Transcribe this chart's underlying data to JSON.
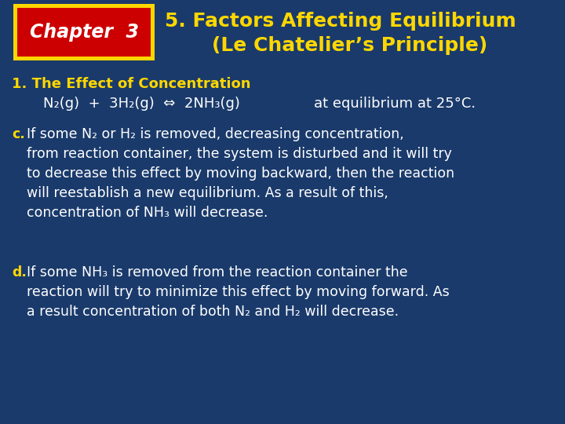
{
  "bg_color": "#1a3a6b",
  "title_line1": "5. Factors Affecting Equilibrium",
  "title_line2": "(Le Chatelier’s Principle)",
  "title_color": "#ffd700",
  "chapter_label": "Chapter  3",
  "chapter_bg": "#cc0000",
  "chapter_border": "#ffd700",
  "chapter_text_color": "#ffffff",
  "section_title": "1. The Effect of Concentration",
  "section_title_color": "#ffd700",
  "equation_color": "#ffffff",
  "eq_label_color": "#ffd700",
  "body_color": "#ffffff",
  "para_c_label": "c.",
  "para_c_text": "If some N₂ or H₂ is removed, decreasing concentration,\nfrom reaction container, the system is disturbed and it will try\nto decrease this effect by moving backward, then the reaction\nwill reestablish a new equilibrium. As a result of this,\nconcentration of NH₃ will decrease.",
  "para_d_label": "d.",
  "para_d_text": "If some NH₃ is removed from the reaction container the\nreaction will try to minimize this effect by moving forward. As\na result concentration of both N₂ and H₂ will decrease."
}
